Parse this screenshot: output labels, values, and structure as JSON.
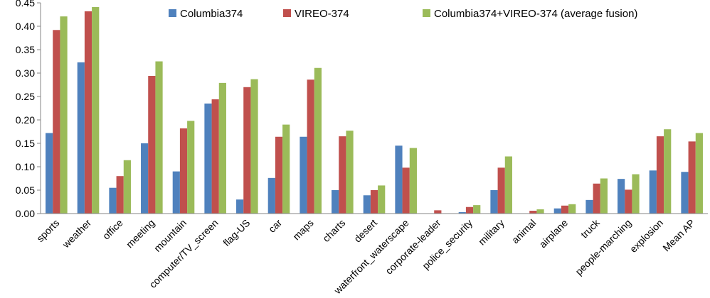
{
  "chart_data": {
    "type": "bar",
    "title": "",
    "xlabel": "",
    "ylabel": "",
    "ylim": [
      0,
      0.45
    ],
    "yticks": [
      "0.00",
      "0.05",
      "0.10",
      "0.15",
      "0.20",
      "0.25",
      "0.30",
      "0.35",
      "0.40",
      "0.45"
    ],
    "ytick_values": [
      0,
      0.05,
      0.1,
      0.15,
      0.2,
      0.25,
      0.3,
      0.35,
      0.4,
      0.45
    ],
    "grid": false,
    "legend_position": "top",
    "categories": [
      "sports",
      "weather",
      "office",
      "meeting",
      "mountain",
      "computer/TV_screen",
      "flag-US",
      "car",
      "maps",
      "charts",
      "desert",
      "waterfront_waterscape",
      "corporate-leader",
      "police_security",
      "military",
      "animal",
      "airplane",
      "truck",
      "people-marching",
      "explosion",
      "Mean AP"
    ],
    "series": [
      {
        "name": "Columbia374",
        "color": "#4f81bd",
        "values": [
          0.172,
          0.323,
          0.055,
          0.15,
          0.09,
          0.235,
          0.03,
          0.076,
          0.164,
          0.05,
          0.039,
          0.145,
          0.0,
          0.003,
          0.05,
          0.0,
          0.011,
          0.029,
          0.074,
          0.092,
          0.089
        ]
      },
      {
        "name": "VIREO-374",
        "color": "#c0504d",
        "values": [
          0.392,
          0.432,
          0.08,
          0.294,
          0.182,
          0.244,
          0.27,
          0.164,
          0.286,
          0.165,
          0.05,
          0.098,
          0.007,
          0.014,
          0.098,
          0.006,
          0.017,
          0.064,
          0.051,
          0.165,
          0.154
        ]
      },
      {
        "name": "Columbia374+VIREO-374 (average fusion)",
        "color": "#9bbb59",
        "values": [
          0.421,
          0.441,
          0.114,
          0.325,
          0.198,
          0.279,
          0.287,
          0.19,
          0.311,
          0.177,
          0.06,
          0.14,
          0.0,
          0.018,
          0.122,
          0.009,
          0.02,
          0.075,
          0.084,
          0.18,
          0.172
        ]
      }
    ]
  }
}
